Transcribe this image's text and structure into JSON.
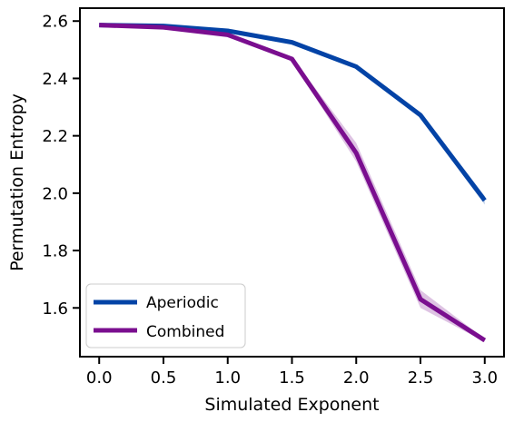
{
  "chart_data": {
    "type": "line",
    "title": "",
    "xlabel": "Simulated Exponent",
    "ylabel": "Permutation Entropy",
    "x": [
      0.0,
      0.5,
      1.0,
      1.5,
      2.0,
      2.5,
      3.0
    ],
    "xticks": [
      "0.0",
      "0.5",
      "1.0",
      "1.5",
      "2.0",
      "2.5",
      "3.0"
    ],
    "yticks": [
      "1.6",
      "1.8",
      "2.0",
      "2.2",
      "2.4",
      "2.6"
    ],
    "xlim": [
      -0.15,
      3.15
    ],
    "ylim": [
      1.43,
      2.645
    ],
    "grid": false,
    "legend_position": "lower-left",
    "series": [
      {
        "name": "Aperiodic",
        "color": "#0343a6",
        "values": [
          2.586,
          2.583,
          2.566,
          2.526,
          2.441,
          2.272,
          1.975
        ],
        "ci_lower": [
          2.584,
          2.58,
          2.562,
          2.522,
          2.436,
          2.262,
          1.96
        ],
        "ci_upper": [
          2.588,
          2.586,
          2.57,
          2.53,
          2.446,
          2.282,
          1.99
        ]
      },
      {
        "name": "Combined",
        "color": "#7a0e8f",
        "values": [
          2.586,
          2.578,
          2.552,
          2.468,
          2.14,
          1.63,
          1.487
        ],
        "ci_lower": [
          2.584,
          2.574,
          2.546,
          2.462,
          2.11,
          1.6,
          1.482
        ],
        "ci_upper": [
          2.588,
          2.582,
          2.558,
          2.474,
          2.175,
          1.662,
          1.492
        ]
      }
    ]
  }
}
